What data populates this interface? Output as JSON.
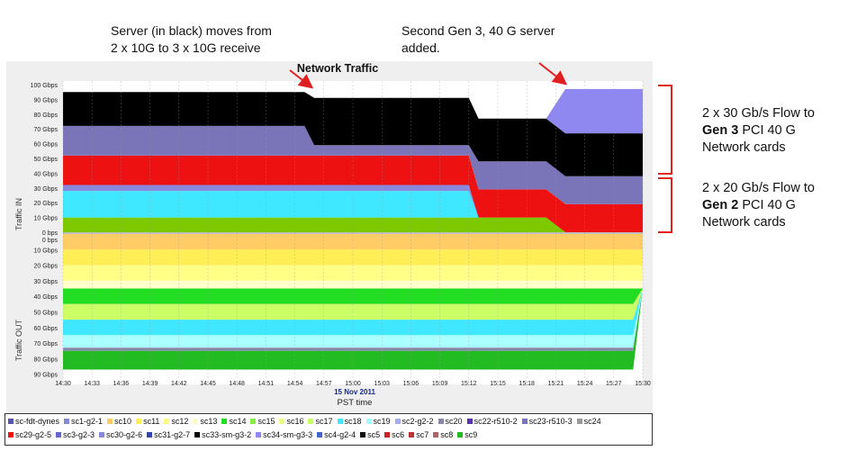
{
  "annotations": {
    "left_line1": "Server (in black) moves from",
    "left_line2": "2  x 10G to 3 x 10G receive",
    "middle_line1": "Second Gen 3,  40 G server",
    "middle_line2": "added.",
    "right_top_line1": "2 x 30 Gb/s Flow to",
    "right_top_bold": "Gen 3",
    "right_top_line2_rest": " PCI 40 G",
    "right_top_line3": "Network cards",
    "right_bottom_line1": "2 x 20 Gb/s Flow to",
    "right_bottom_bold": "Gen 2",
    "right_bottom_line2_rest": " PCI 40 G",
    "right_bottom_line3": "Network cards"
  },
  "colors": {
    "arrow": "#e02020",
    "bracket": "#e02020",
    "panel_bg": "#efefef"
  },
  "chart_data": {
    "type": "area",
    "title": "Network Traffic",
    "xlabel": "PST time",
    "date_label": "15 Nov 2011",
    "ylabel_in": "Traffic IN",
    "ylabel_out": "Traffic OUT",
    "y_in_ticks": [
      "100 Gbps",
      "90 Gbps",
      "80 Gbps",
      "70 Gbps",
      "60 Gbps",
      "50 Gbps",
      "40 Gbps",
      "30 Gbps",
      "20 Gbps",
      "10 Gbps",
      "0 bps"
    ],
    "y_out_ticks": [
      "0 bps",
      "10 Gbps",
      "20 Gbps",
      "30 Gbps",
      "40 Gbps",
      "50 Gbps",
      "60 Gbps",
      "70 Gbps",
      "80 Gbps",
      "90 Gbps"
    ],
    "y_in_range": [
      0,
      100
    ],
    "y_out_range": [
      0,
      90
    ],
    "x_ticks": [
      "14:30",
      "14:33",
      "14:36",
      "14:39",
      "14:42",
      "14:45",
      "14:48",
      "14:51",
      "14:54",
      "14:57",
      "15:00",
      "15:03",
      "15:06",
      "15:09",
      "15:12",
      "15:15",
      "15:18",
      "15:21",
      "15:24",
      "15:27",
      "15:30"
    ],
    "x_range": [
      "14:30",
      "15:30"
    ],
    "stack_in": {
      "x": [
        "14:30",
        "14:55",
        "14:56",
        "15:12",
        "15:13",
        "15:20",
        "15:22",
        "15:30"
      ],
      "series": [
        {
          "name": "sc5",
          "color": "#7ec800",
          "values": [
            10,
            10,
            10,
            10,
            10,
            10,
            0,
            0
          ]
        },
        {
          "name": "sc18",
          "color": "#40e8ff",
          "values": [
            18,
            18,
            18,
            18,
            0,
            0,
            0,
            0
          ]
        },
        {
          "name": "sc30-g2-6",
          "color": "#8888dd",
          "values": [
            4,
            4,
            4,
            4,
            0,
            0,
            0,
            0
          ]
        },
        {
          "name": "sc6",
          "color": "#ee1111",
          "values": [
            20,
            20,
            20,
            20,
            19,
            19,
            19,
            19
          ]
        },
        {
          "name": "sc23-r510-3",
          "color": "#7a74b8",
          "values": [
            20,
            20,
            7,
            7,
            19,
            19,
            19,
            19
          ]
        },
        {
          "name": "sc33-sm-g3-2",
          "color": "#000000",
          "values": [
            23,
            23,
            32,
            32,
            29,
            29,
            29,
            29
          ]
        },
        {
          "name": "sc34-sm-g3-3",
          "color": "#8e88f0",
          "values": [
            0,
            0,
            0,
            0,
            0,
            0,
            30,
            30
          ]
        }
      ]
    },
    "stack_out": {
      "x": [
        "14:30",
        "15:29",
        "15:30"
      ],
      "series": [
        {
          "name": "sc10",
          "color": "#ffcc66",
          "values": [
            10,
            10,
            10
          ]
        },
        {
          "name": "sc11",
          "color": "#ffee55",
          "values": [
            10,
            10,
            10
          ]
        },
        {
          "name": "sc12",
          "color": "#ffff88",
          "values": [
            10,
            10,
            10
          ]
        },
        {
          "name": "sc13",
          "color": "#ffffcc",
          "values": [
            5,
            5,
            5
          ]
        },
        {
          "name": "sc14",
          "color": "#22dd22",
          "values": [
            10,
            10,
            0
          ]
        },
        {
          "name": "sc17",
          "color": "#ccff66",
          "values": [
            10,
            10,
            0
          ]
        },
        {
          "name": "sc18",
          "color": "#40e8ff",
          "values": [
            10,
            10,
            0
          ]
        },
        {
          "name": "sc19",
          "color": "#aaffff",
          "values": [
            8,
            8,
            0
          ]
        },
        {
          "name": "sc20",
          "color": "#8888aa",
          "values": [
            2,
            2,
            0
          ]
        },
        {
          "name": "sc9",
          "color": "#22bb22",
          "values": [
            12,
            12,
            0
          ]
        }
      ]
    }
  },
  "legend": [
    {
      "name": "sc-fdt-dynes",
      "color": "#5555aa"
    },
    {
      "name": "sc1-g2-1",
      "color": "#8888cc"
    },
    {
      "name": "sc10",
      "color": "#ffcc66"
    },
    {
      "name": "sc11",
      "color": "#ffee55"
    },
    {
      "name": "sc12",
      "color": "#ffff88"
    },
    {
      "name": "sc13",
      "color": "#ffffcc"
    },
    {
      "name": "sc14",
      "color": "#22dd22"
    },
    {
      "name": "sc15",
      "color": "#88ee44"
    },
    {
      "name": "sc16",
      "color": "#eeff88"
    },
    {
      "name": "sc17",
      "color": "#ccff66"
    },
    {
      "name": "sc18",
      "color": "#40e8ff"
    },
    {
      "name": "sc19",
      "color": "#aaffff"
    },
    {
      "name": "sc2-g2-2",
      "color": "#aaaaee"
    },
    {
      "name": "sc20",
      "color": "#8888aa"
    },
    {
      "name": "sc22-r510-2",
      "color": "#5533aa"
    },
    {
      "name": "sc23-r510-3",
      "color": "#7a74b8"
    },
    {
      "name": "sc24",
      "color": "#999999"
    },
    {
      "name": "sc29-g2-5",
      "color": "#ee1111"
    },
    {
      "name": "sc3-g2-3",
      "color": "#6666cc"
    },
    {
      "name": "sc30-g2-6",
      "color": "#8888dd"
    },
    {
      "name": "sc31-g2-7",
      "color": "#3344aa"
    },
    {
      "name": "sc33-sm-g3-2",
      "color": "#000000"
    },
    {
      "name": "sc34-sm-g3-3",
      "color": "#8e88f0"
    },
    {
      "name": "sc4-g2-4",
      "color": "#4466cc"
    },
    {
      "name": "sc5",
      "color": "#111111"
    },
    {
      "name": "sc6",
      "color": "#cc2222"
    },
    {
      "name": "sc7",
      "color": "#bb3333"
    },
    {
      "name": "sc8",
      "color": "#aa6666"
    },
    {
      "name": "sc9",
      "color": "#22bb22"
    }
  ]
}
